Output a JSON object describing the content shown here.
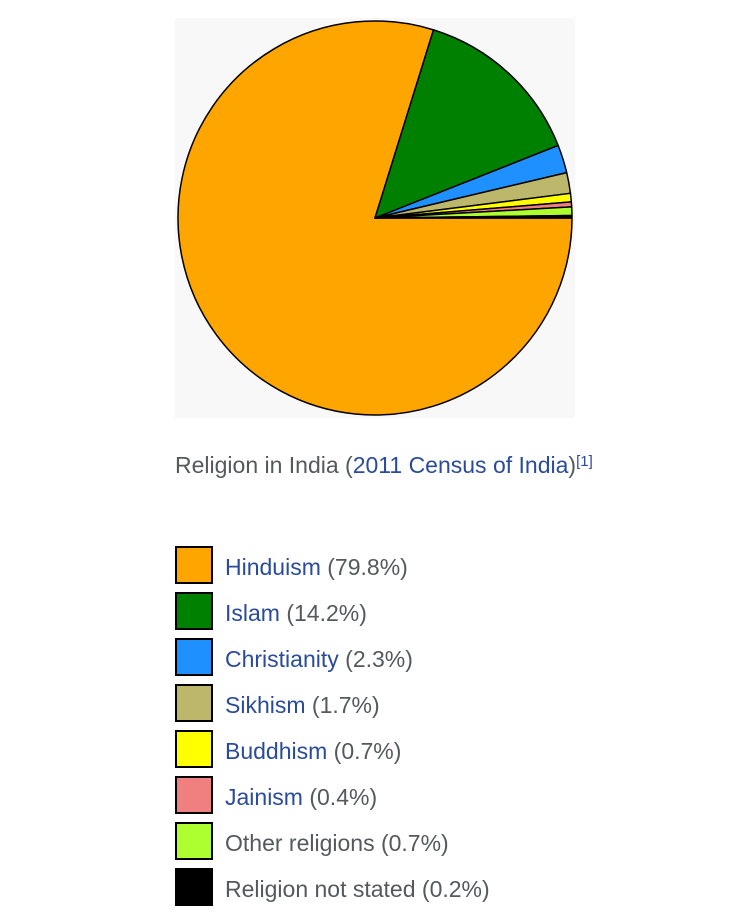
{
  "chart_data": {
    "type": "pie",
    "title": "",
    "slices": [
      {
        "label": "Hinduism",
        "value": 79.8,
        "pct_text": "(79.8%)",
        "color": "#ffa500",
        "link": true
      },
      {
        "label": "Islam",
        "value": 14.2,
        "pct_text": "(14.2%)",
        "color": "#008000",
        "link": true
      },
      {
        "label": "Christianity",
        "value": 2.3,
        "pct_text": "(2.3%)",
        "color": "#1e90ff",
        "link": true
      },
      {
        "label": "Sikhism",
        "value": 1.7,
        "pct_text": "(1.7%)",
        "color": "#bdb76b",
        "link": true
      },
      {
        "label": "Buddhism",
        "value": 0.7,
        "pct_text": "(0.7%)",
        "color": "#ffff00",
        "link": true
      },
      {
        "label": "Jainism",
        "value": 0.4,
        "pct_text": "(0.4%)",
        "color": "#f08080",
        "link": true
      },
      {
        "label": "Other religions",
        "value": 0.7,
        "pct_text": "(0.7%)",
        "color": "#adff2f",
        "link": false
      },
      {
        "label": "Religion not stated",
        "value": 0.2,
        "pct_text": "(0.2%)",
        "color": "#000000",
        "link": false
      }
    ],
    "start": "3 o'clock",
    "direction": "clockwise"
  },
  "caption": {
    "prefix": "Religion in India (",
    "link": "2011 Census of India",
    "suffix": ")",
    "ref": "[1]"
  },
  "colors": {
    "link": "#2a4b9b",
    "text": "#54595d",
    "panel": "#f8f8f8"
  }
}
